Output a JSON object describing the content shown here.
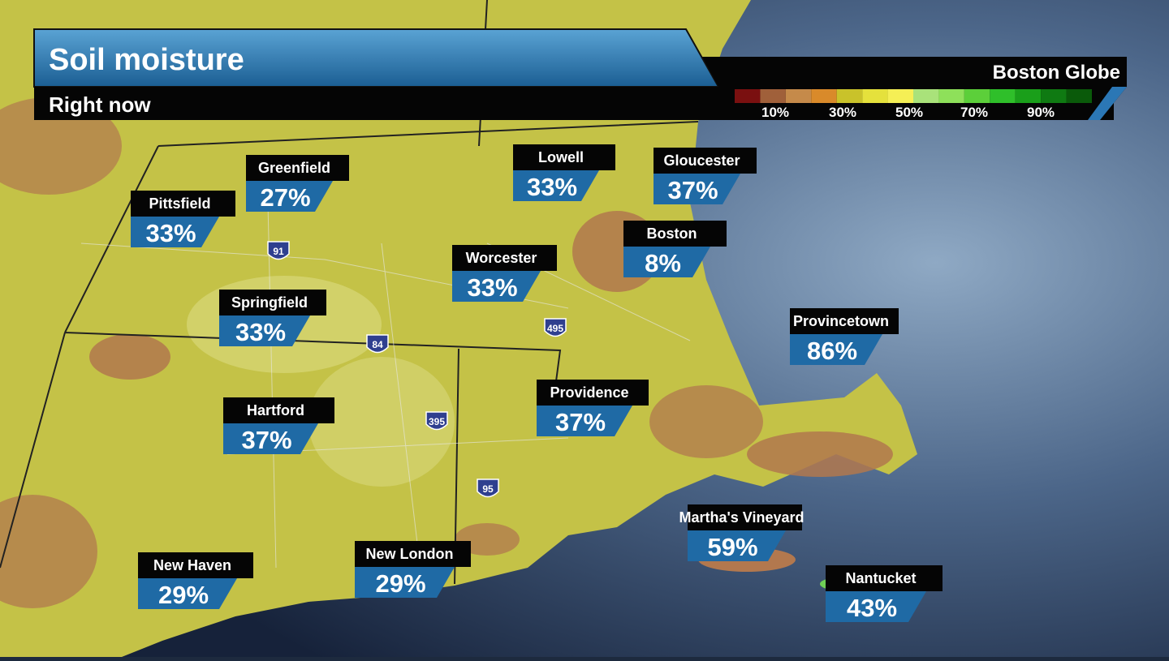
{
  "header": {
    "title": "Soil moisture",
    "subtitle": "Right now",
    "source": "Boston Globe"
  },
  "legend": {
    "labels": [
      "10%",
      "30%",
      "50%",
      "70%",
      "90%"
    ]
  },
  "highways": [
    "91",
    "84",
    "495",
    "395",
    "95"
  ],
  "cities": [
    {
      "name": "Greenfield",
      "value": "27%"
    },
    {
      "name": "Pittsfield",
      "value": "33%"
    },
    {
      "name": "Lowell",
      "value": "33%"
    },
    {
      "name": "Gloucester",
      "value": "37%"
    },
    {
      "name": "Boston",
      "value": "8%"
    },
    {
      "name": "Worcester",
      "value": "33%"
    },
    {
      "name": "Springfield",
      "value": "33%"
    },
    {
      "name": "Provincetown",
      "value": "86%"
    },
    {
      "name": "Providence",
      "value": "37%"
    },
    {
      "name": "Hartford",
      "value": "37%"
    },
    {
      "name": "Martha's Vineyard",
      "value": "59%"
    },
    {
      "name": "New London",
      "value": "29%"
    },
    {
      "name": "New Haven",
      "value": "29%"
    },
    {
      "name": "Nantucket",
      "value": "43%"
    }
  ]
}
